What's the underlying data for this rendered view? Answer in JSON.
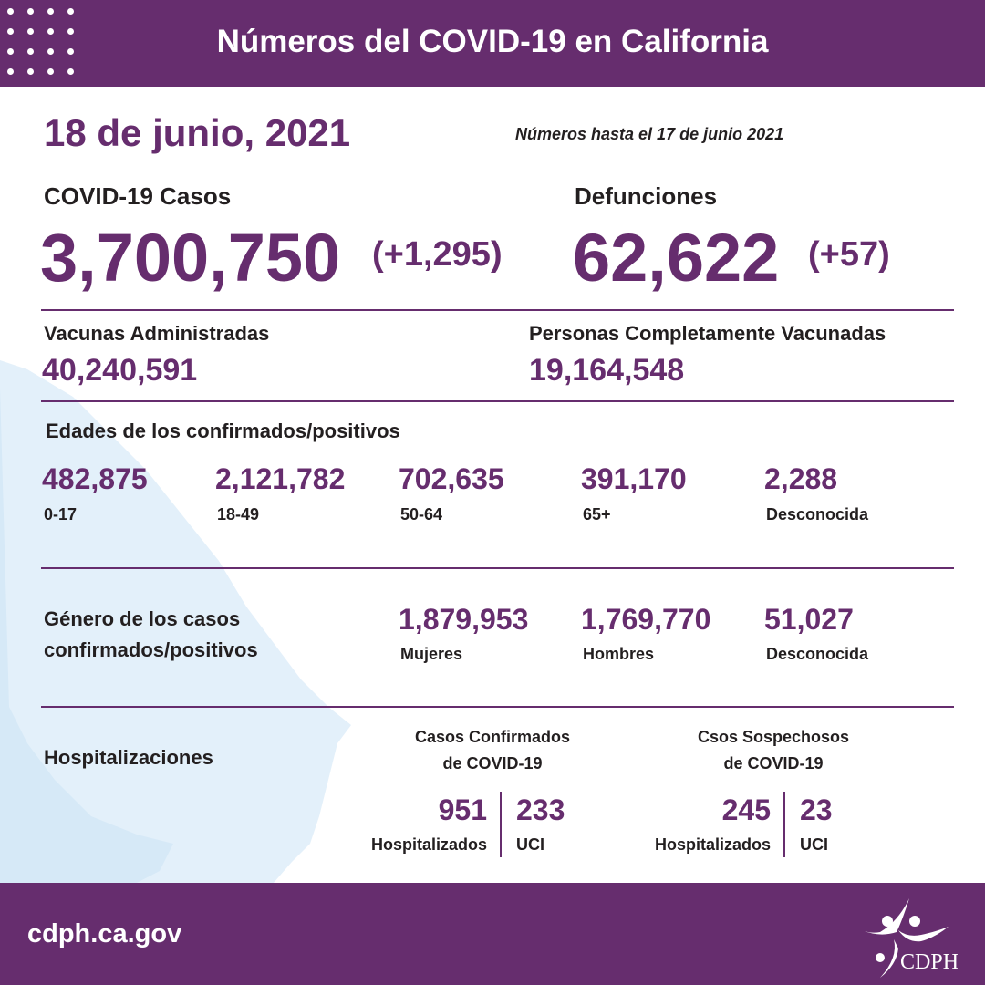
{
  "header": {
    "title": "Números del COVID-19 en California"
  },
  "date": "18 de junio, 2021",
  "as_of": "Números hasta el 17 de junio 2021",
  "cases": {
    "label": "COVID-19 Casos",
    "value": "3,700,750",
    "change": "(+1,295)"
  },
  "deaths": {
    "label": "Defunciones",
    "value": "62,622",
    "change": "(+57)"
  },
  "vaccines": {
    "label": "Vacunas Administradas",
    "value": "40,240,591"
  },
  "fully_vaccinated": {
    "label": "Personas Completamente Vacunadas",
    "value": "19,164,548"
  },
  "ages": {
    "title": "Edades de los confirmados/positivos",
    "items": [
      {
        "value": "482,875",
        "label": "0-17"
      },
      {
        "value": "2,121,782",
        "label": "18-49"
      },
      {
        "value": "702,635",
        "label": "50-64"
      },
      {
        "value": "391,170",
        "label": "65+"
      },
      {
        "value": "2,288",
        "label": "Desconocida"
      }
    ]
  },
  "gender": {
    "title_line1": "Género de los casos",
    "title_line2": "confirmados/positivos",
    "items": [
      {
        "value": "1,879,953",
        "label": "Mujeres"
      },
      {
        "value": "1,769,770",
        "label": "Hombres"
      },
      {
        "value": "51,027",
        "label": "Desconocida"
      }
    ]
  },
  "hospital": {
    "title": "Hospitalizaciones",
    "confirmed": {
      "title_line1": "Casos Confirmados",
      "title_line2": "de COVID-19",
      "hosp_value": "951",
      "hosp_label": "Hospitalizados",
      "icu_value": "233",
      "icu_label": "UCI"
    },
    "suspected": {
      "title_line1": "Csos Sospechosos",
      "title_line2": "de COVID-19",
      "hosp_value": "245",
      "hosp_label": "Hospitalizados",
      "icu_value": "23",
      "icu_label": "UCI"
    }
  },
  "footer": {
    "url": "cdph.ca.gov",
    "logo_text": "CDPH"
  },
  "colors": {
    "brand": "#662d6e",
    "map": "#e3f0fa"
  }
}
